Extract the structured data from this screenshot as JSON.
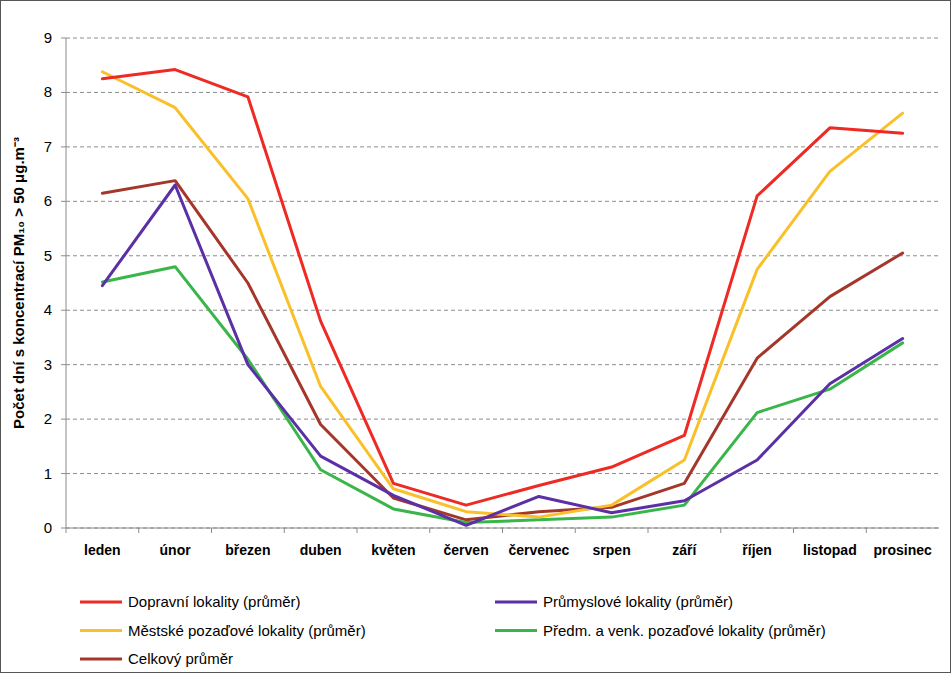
{
  "chart_data": {
    "type": "line",
    "y_label": "Počet dní s koncentrací PM₁₀ > 50 μg.m⁻³",
    "categories": [
      "leden",
      "únor",
      "březen",
      "duben",
      "květen",
      "červen",
      "červenec",
      "srpen",
      "září",
      "říjen",
      "listopad",
      "prosinec"
    ],
    "series": [
      {
        "name": "Dopravní lokality (průměr)",
        "color": "#ee2a24",
        "values": [
          8.25,
          8.42,
          7.92,
          3.8,
          0.82,
          0.42,
          0.78,
          1.12,
          1.7,
          6.1,
          7.35,
          7.25
        ]
      },
      {
        "name": "Průmyslové lokality (průměr)",
        "color": "#5b2fa6",
        "values": [
          4.45,
          6.3,
          3.0,
          1.32,
          0.6,
          0.05,
          0.58,
          0.28,
          0.5,
          1.25,
          2.65,
          3.48
        ]
      },
      {
        "name": "Městské pozaďové lokality (průměr)",
        "color": "#f9c02a",
        "values": [
          8.38,
          7.72,
          6.05,
          2.6,
          0.72,
          0.3,
          0.2,
          0.42,
          1.25,
          4.75,
          6.55,
          7.62
        ]
      },
      {
        "name": "Předm. a venk. pozaďové lokality (průměr)",
        "color": "#3ab54a",
        "values": [
          4.52,
          4.8,
          3.1,
          1.07,
          0.35,
          0.1,
          0.15,
          0.2,
          0.42,
          2.12,
          2.55,
          3.4
        ]
      },
      {
        "name": "Celkový průměr",
        "color": "#a5372a",
        "values": [
          6.15,
          6.38,
          4.5,
          1.9,
          0.55,
          0.15,
          0.3,
          0.38,
          0.82,
          3.12,
          4.25,
          5.05
        ]
      }
    ],
    "ylim": [
      0,
      9
    ],
    "yticks": [
      0,
      1,
      2,
      3,
      4,
      5,
      6,
      7,
      8,
      9
    ],
    "grid": true,
    "legend": "bottom"
  }
}
